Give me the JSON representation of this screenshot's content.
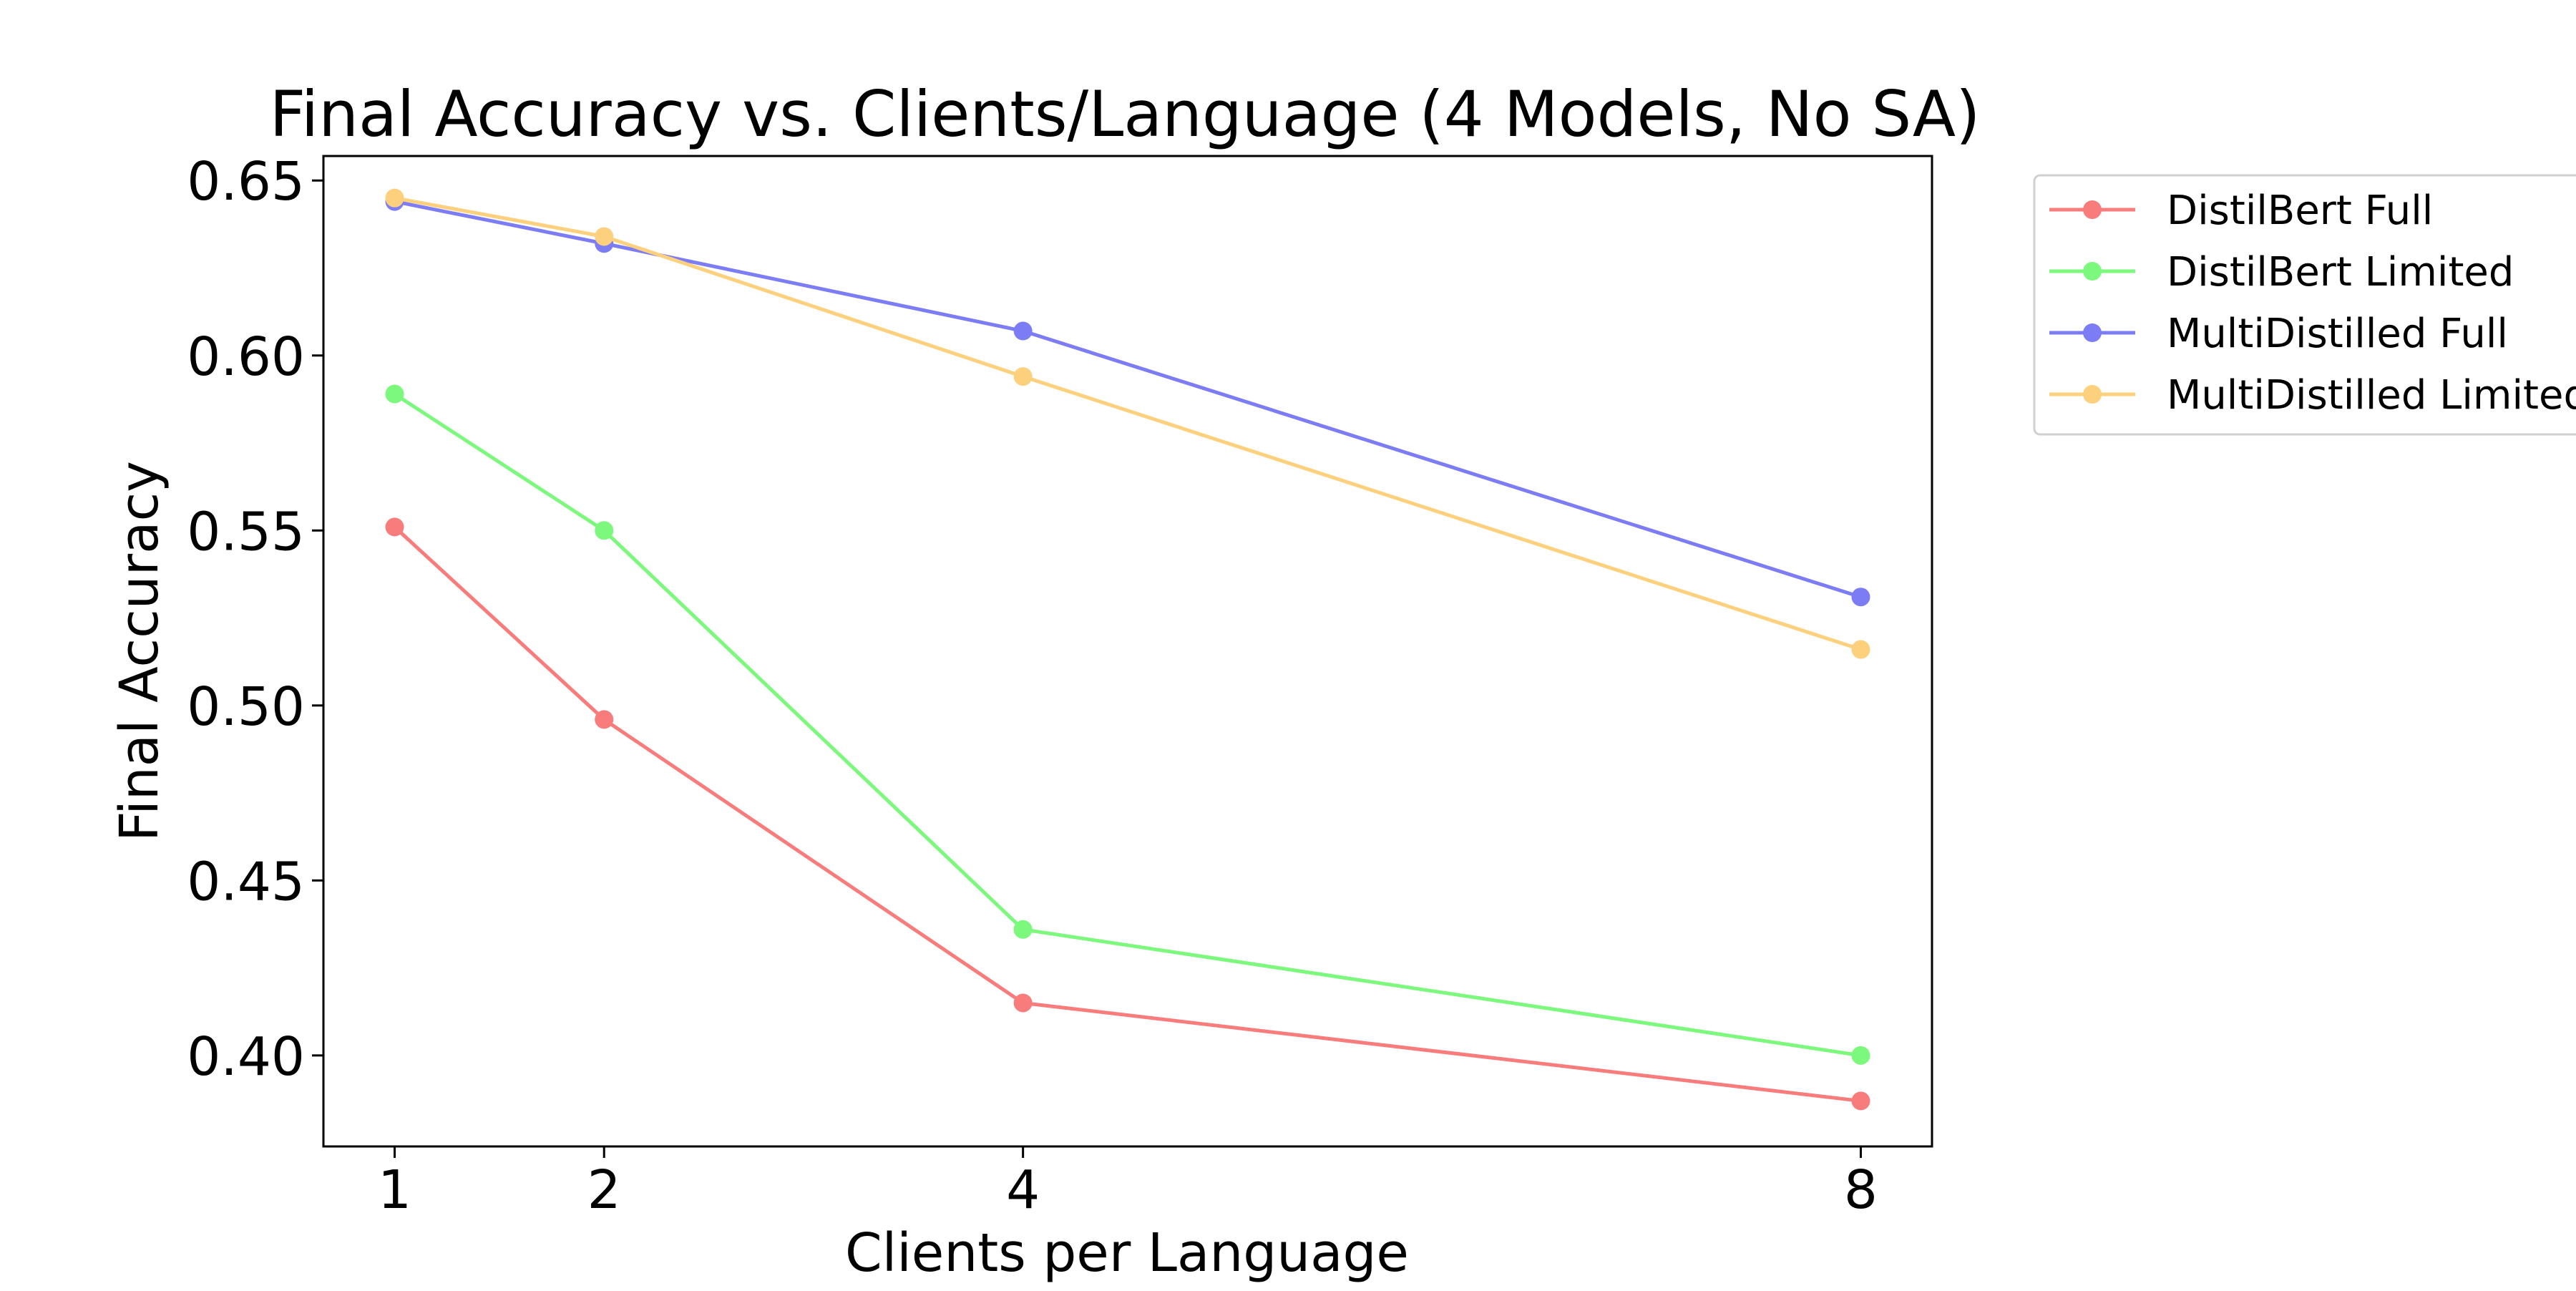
{
  "chart_data": {
    "type": "line",
    "title": "Final Accuracy vs. Clients/Language (4 Models, No SA)",
    "xlabel": "Clients per Language",
    "ylabel": "Final Accuracy",
    "x": [
      1,
      2,
      4,
      8
    ],
    "xticks": [
      "1",
      "2",
      "4",
      "8"
    ],
    "yticks": [
      "0.40",
      "0.45",
      "0.50",
      "0.55",
      "0.60",
      "0.65"
    ],
    "xlim": [
      0.66,
      8.34
    ],
    "ylim": [
      0.374,
      0.657
    ],
    "grid": false,
    "legend_position": "outside-right",
    "series": [
      {
        "name": "DistilBert Full",
        "color": "#f87c7c",
        "values": [
          0.551,
          0.496,
          0.415,
          0.387
        ]
      },
      {
        "name": "DistilBert Limited",
        "color": "#7cf87c",
        "values": [
          0.589,
          0.55,
          0.436,
          0.4
        ]
      },
      {
        "name": "MultiDistilled Full",
        "color": "#7c7cf4",
        "values": [
          0.644,
          0.632,
          0.607,
          0.531
        ]
      },
      {
        "name": "MultiDistilled Limited",
        "color": "#fcd07c",
        "values": [
          0.645,
          0.634,
          0.594,
          0.516
        ]
      }
    ]
  }
}
